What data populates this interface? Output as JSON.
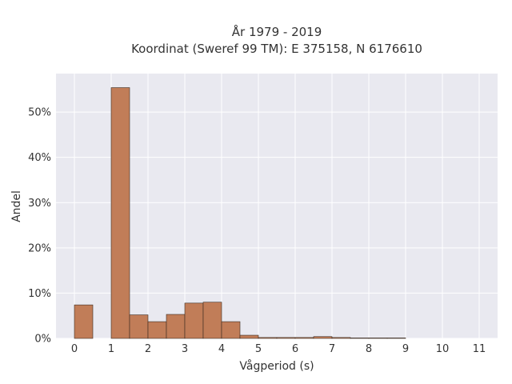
{
  "chart_data": {
    "type": "bar",
    "title": "År 1979 - 2019",
    "subtitle": "Koordinat (Sweref 99 TM): E 375158, N 6176610",
    "xlabel": "Vågperiod (s)",
    "ylabel": "Andel",
    "bin_width": 0.5,
    "xlim": [
      -0.5,
      11.5
    ],
    "ylim": [
      0,
      0.585
    ],
    "x_ticks": [
      0,
      1,
      2,
      3,
      4,
      5,
      6,
      7,
      8,
      9,
      10,
      11
    ],
    "y_ticks": [
      0,
      0.1,
      0.2,
      0.3,
      0.4,
      0.5
    ],
    "y_tick_labels": [
      "0%",
      "10%",
      "20%",
      "30%",
      "40%",
      "50%"
    ],
    "grid": true,
    "bar_color": "#c17d58",
    "bar_edge_color": "#3a2a20",
    "background_color": "#e9e9f0",
    "bins": [
      {
        "x0": 0.0,
        "value": 0.074
      },
      {
        "x0": 1.0,
        "value": 0.554
      },
      {
        "x0": 1.5,
        "value": 0.052
      },
      {
        "x0": 2.0,
        "value": 0.037
      },
      {
        "x0": 2.5,
        "value": 0.053
      },
      {
        "x0": 3.0,
        "value": 0.078
      },
      {
        "x0": 3.5,
        "value": 0.08
      },
      {
        "x0": 4.0,
        "value": 0.037
      },
      {
        "x0": 4.5,
        "value": 0.007
      },
      {
        "x0": 5.0,
        "value": 0.002
      },
      {
        "x0": 5.5,
        "value": 0.002
      },
      {
        "x0": 6.0,
        "value": 0.002
      },
      {
        "x0": 6.5,
        "value": 0.004
      },
      {
        "x0": 7.0,
        "value": 0.002
      },
      {
        "x0": 7.5,
        "value": 0.001
      },
      {
        "x0": 8.0,
        "value": 0.001
      },
      {
        "x0": 8.5,
        "value": 0.001
      }
    ]
  }
}
